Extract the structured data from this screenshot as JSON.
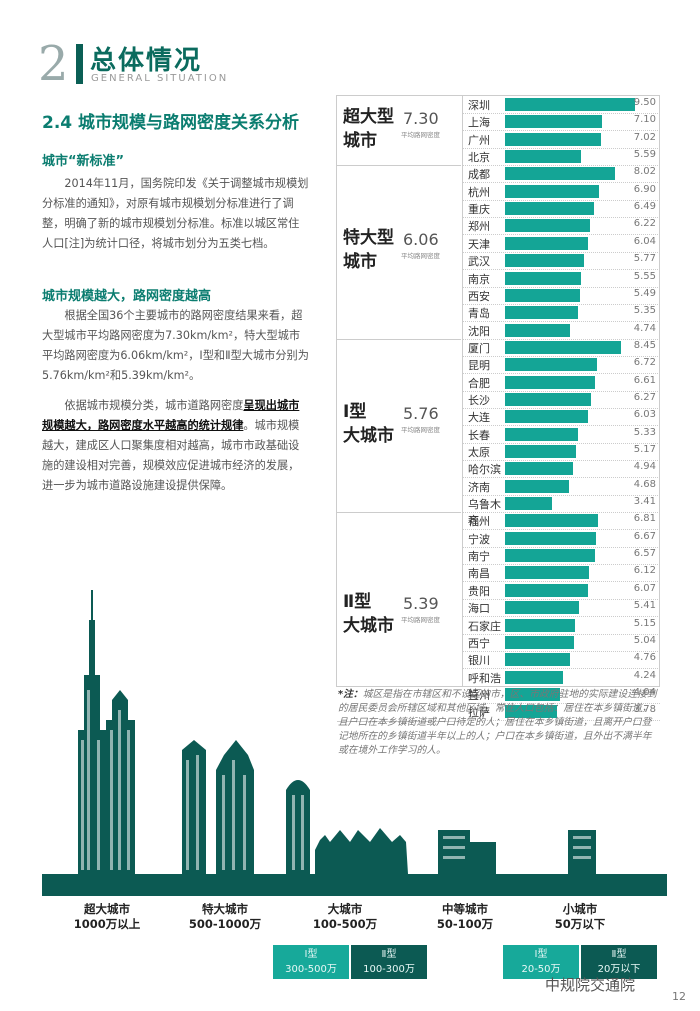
{
  "header": {
    "num": "2",
    "title": "总体情况",
    "subtitle": "GENERAL SITUATION"
  },
  "section": {
    "heading": "2.4 城市规模与路网密度关系分析",
    "sub1": "城市“新标准”",
    "p1": "2014年11月，国务院印发《关于调整城市规模划分标准的通知》，对原有城市规模划分标准进行了调整，明确了新的城市规模划分标准。标准以城区常住人口[注]为统计口径，将城市划分为五类七档。",
    "sub2": "城市规模越大，路网密度越高",
    "p2": "根据全国36个主要城市的路网密度结果来看，超大型城市平均路网密度为7.30km/km²，特大型城市平均路网密度为6.06km/km²，Ⅰ型和Ⅱ型大城市分别为5.76km/km²和5.39km/km²。",
    "p3_a": "依据城市规模分类，城市道路网密度",
    "p3_b": "呈现出城市规模越大，路网密度水平越高的统计规律",
    "p3_c": "。城市规模越大，建成区人口聚集度相对越高，城市市政基础设施的建设相对完善，规模效应促进城市经济的发展，进一步为城市道路设施建设提供保障。"
  },
  "avg_label": "平均路网密度",
  "chart_data": {
    "type": "bar",
    "max": 9.5,
    "groups": [
      {
        "name_l1": "超大型",
        "name_l2": "城市",
        "avg": "7.30",
        "cities": [
          [
            "深圳",
            9.5
          ],
          [
            "上海",
            7.1
          ],
          [
            "广州",
            7.02
          ],
          [
            "北京",
            5.59
          ]
        ]
      },
      {
        "name_l1": "特大型",
        "name_l2": "城市",
        "avg": "6.06",
        "cities": [
          [
            "成都",
            8.02
          ],
          [
            "杭州",
            6.9
          ],
          [
            "重庆",
            6.49
          ],
          [
            "郑州",
            6.22
          ],
          [
            "天津",
            6.04
          ],
          [
            "武汉",
            5.77
          ],
          [
            "南京",
            5.55
          ],
          [
            "西安",
            5.49
          ],
          [
            "青岛",
            5.35
          ],
          [
            "沈阳",
            4.74
          ]
        ]
      },
      {
        "name_l1": "Ⅰ型",
        "name_l2": "大城市",
        "avg": "5.76",
        "cities": [
          [
            "厦门",
            8.45
          ],
          [
            "昆明",
            6.72
          ],
          [
            "合肥",
            6.61
          ],
          [
            "长沙",
            6.27
          ],
          [
            "大连",
            6.03
          ],
          [
            "长春",
            5.33
          ],
          [
            "太原",
            5.17
          ],
          [
            "哈尔滨",
            4.94
          ],
          [
            "济南",
            4.68
          ],
          [
            "乌鲁木齐",
            3.41
          ]
        ]
      },
      {
        "name_l1": "Ⅱ型",
        "name_l2": "大城市",
        "avg": "5.39",
        "cities": [
          [
            "福州",
            6.81
          ],
          [
            "宁波",
            6.67
          ],
          [
            "南宁",
            6.57
          ],
          [
            "南昌",
            6.12
          ],
          [
            "贵阳",
            6.07
          ],
          [
            "海口",
            5.41
          ],
          [
            "石家庄",
            5.15
          ],
          [
            "西宁",
            5.04
          ],
          [
            "银川",
            4.76
          ],
          [
            "呼和浩特",
            4.24
          ],
          [
            "兰州",
            4.04
          ],
          [
            "拉萨",
            3.78
          ]
        ]
      }
    ]
  },
  "note": {
    "label": "*注：",
    "text": "城区是指在市辖区和不设区的市，区、市政府驻地的实际建设连接到的居民委员会所辖区域和其他区域。常住人口包括：居住在本乡镇街道，且户口在本乡镇街道或户口待定的人；居住在本乡镇街道，且离开户口登记地所在的乡镇街道半年以上的人；户口在本乡镇街道，且外出不满半年或在境外工作学习的人。"
  },
  "categories": [
    {
      "l1": "超大城市",
      "l2": "1000万以上"
    },
    {
      "l1": "特大城市",
      "l2": "500-1000万"
    },
    {
      "l1": "大城市",
      "l2": "100-500万"
    },
    {
      "l1": "中等城市",
      "l2": "50-100万"
    },
    {
      "l1": "小城市",
      "l2": "50万以下"
    }
  ],
  "pills": [
    {
      "l1": "Ⅰ型",
      "l2": "300-500万"
    },
    {
      "l1": "Ⅱ型",
      "l2": "100-300万"
    },
    {
      "l1": "Ⅰ型",
      "l2": "20-50万"
    },
    {
      "l1": "Ⅱ型",
      "l2": "20万以下"
    }
  ],
  "colors": {
    "teal": "#14a596",
    "dark": "#0c5a53"
  },
  "watermark": "中规院交通院",
  "page": "12"
}
